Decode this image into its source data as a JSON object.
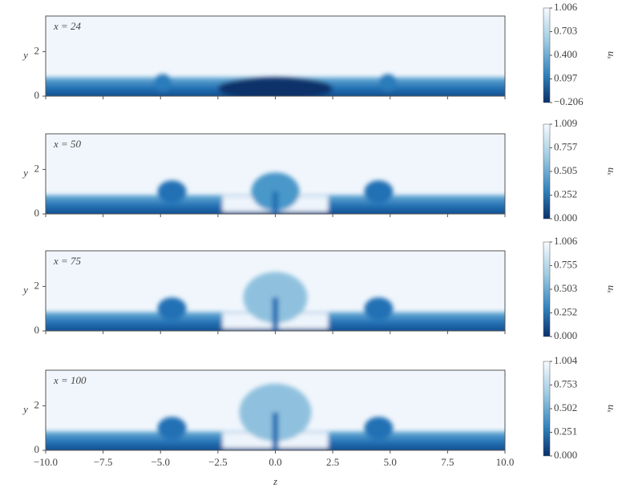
{
  "chart_data": [
    {
      "type": "heatmap",
      "annotation": "x = 24",
      "xlim": [
        -10,
        10
      ],
      "ylim": [
        0,
        3.6
      ],
      "xticks": [
        -10,
        -7.5,
        -5,
        -2.5,
        0,
        2.5,
        5,
        7.5,
        10
      ],
      "yticks": [
        0,
        2
      ],
      "ylabel": "y",
      "colorbar_label": "uₓ",
      "clim": [
        -0.206,
        1.006
      ],
      "colorbar_ticks": [
        1.006,
        0.703,
        {
          "value": 0.4,
          "label": "0.400"
        },
        0.097,
        {
          "value": -0.206,
          "label": "−0.206"
        }
      ]
    },
    {
      "type": "heatmap",
      "annotation": "x = 50",
      "xlim": [
        -10,
        10
      ],
      "ylim": [
        0,
        3.6
      ],
      "xticks": [
        -10,
        -7.5,
        -5,
        -2.5,
        0,
        2.5,
        5,
        7.5,
        10
      ],
      "yticks": [
        0,
        2
      ],
      "ylabel": "y",
      "colorbar_label": "uₓ",
      "clim": [
        0,
        1.009
      ],
      "colorbar_ticks": [
        1.009,
        0.757,
        0.505,
        0.252,
        {
          "value": 0,
          "label": "0.000"
        }
      ]
    },
    {
      "type": "heatmap",
      "annotation": "x = 75",
      "xlim": [
        -10,
        10
      ],
      "ylim": [
        0,
        3.6
      ],
      "xticks": [
        -10,
        -7.5,
        -5,
        -2.5,
        0,
        2.5,
        5,
        7.5,
        10
      ],
      "yticks": [
        0,
        2
      ],
      "ylabel": "y",
      "colorbar_label": "uₓ",
      "clim": [
        0,
        1.006
      ],
      "colorbar_ticks": [
        1.006,
        0.755,
        0.503,
        0.252,
        {
          "value": 0,
          "label": "0.000"
        }
      ]
    },
    {
      "type": "heatmap",
      "annotation": "x = 100",
      "xlim": [
        -10,
        10
      ],
      "ylim": [
        0,
        3.6
      ],
      "xticks": [
        {
          "value": -10,
          "label": "−10.0"
        },
        {
          "value": -7.5,
          "label": "−7.5"
        },
        {
          "value": -5,
          "label": "−5.0"
        },
        {
          "value": -2.5,
          "label": "−2.5"
        },
        {
          "value": 0,
          "label": "0.0"
        },
        2.5,
        {
          "value": 5,
          "label": "5.0"
        },
        7.5,
        {
          "value": 10,
          "label": "10.0"
        }
      ],
      "xlabel": "z",
      "yticks": [
        0,
        2
      ],
      "ylabel": "y",
      "colorbar_label": "uₓ",
      "clim": [
        0,
        1.004
      ],
      "colorbar_ticks": [
        1.004,
        0.753,
        0.502,
        0.251,
        {
          "value": 0,
          "label": "0.000"
        }
      ]
    }
  ]
}
